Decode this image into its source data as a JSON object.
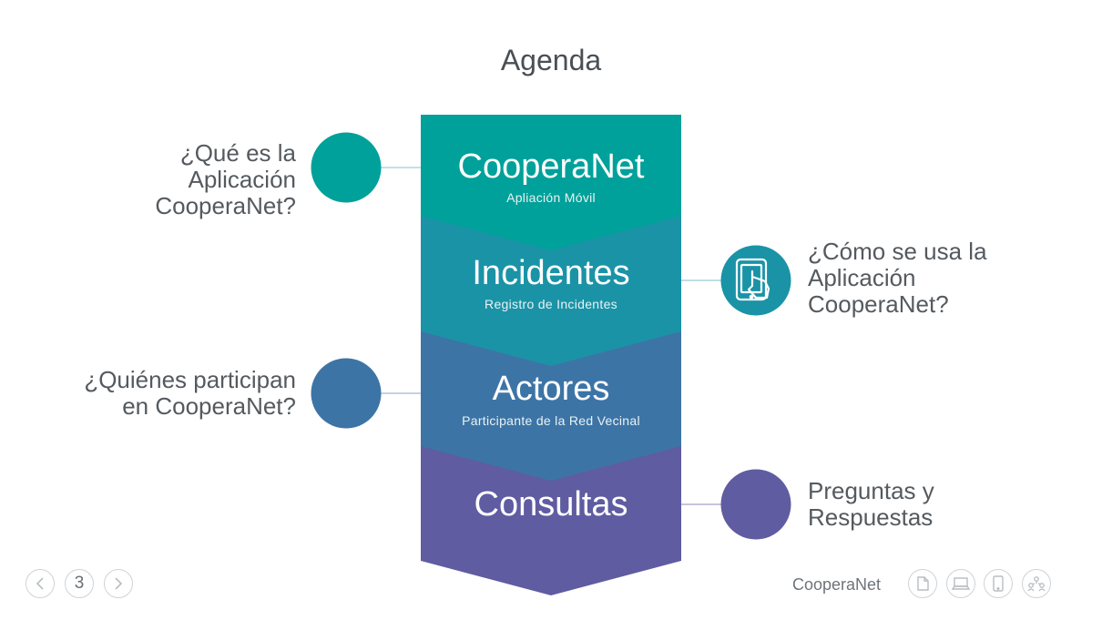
{
  "title": "Agenda",
  "segments": [
    {
      "title": "CooperaNet",
      "subtitle": "Apliación Móvil",
      "color": "#00a19a"
    },
    {
      "title": "Incidentes",
      "subtitle": "Registro de Incidentes",
      "color": "#1a93a7"
    },
    {
      "title": "Actores",
      "subtitle": "Participante de la Red Vecinal",
      "color": "#3d74a6"
    },
    {
      "title": "Consultas",
      "subtitle": "",
      "color": "#5f5ca1"
    }
  ],
  "questions": {
    "q1": [
      "¿Qué es la",
      "Aplicación",
      "CooperaNet?"
    ],
    "q2": [
      "¿Cómo se usa la",
      "Aplicación",
      "CooperaNet?"
    ],
    "q3": [
      "¿Quiénes participan",
      "en CooperaNet?"
    ],
    "q4": [
      "Preguntas y",
      "Respuestas"
    ]
  },
  "footer": {
    "page": "3",
    "brand": "CooperaNet",
    "icons": [
      "document-icon",
      "laptop-icon",
      "tablet-icon",
      "people-network-icon"
    ]
  }
}
